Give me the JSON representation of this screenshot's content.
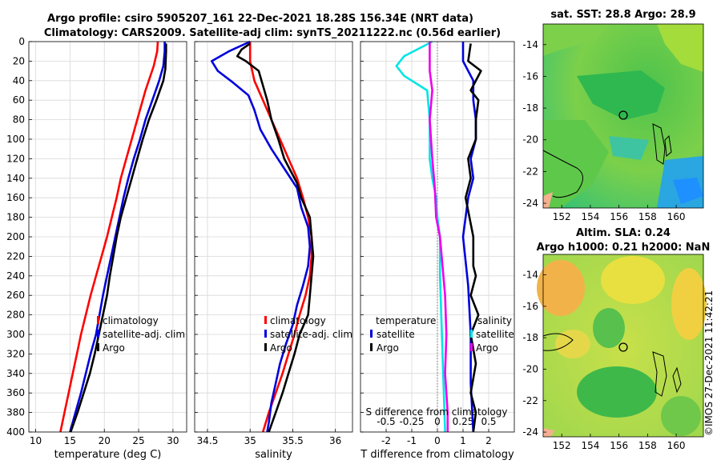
{
  "title": {
    "line1": "Argo profile: csiro 5905207_161 22-Dec-2021 18.28S 156.34E (NRT data)",
    "line2": "Climatology: CARS2009. Satellite-adj clim: synTS_20211222.nc (0.56d earlier)"
  },
  "depth_ticks": [
    "0",
    "20",
    "40",
    "60",
    "80",
    "100",
    "120",
    "140",
    "160",
    "180",
    "200",
    "220",
    "240",
    "260",
    "280",
    "300",
    "320",
    "340",
    "360",
    "380",
    "400"
  ],
  "colors": {
    "red": "#ff0000",
    "blue": "#0000dd",
    "black": "#000000",
    "cyan": "#00e5e5",
    "magenta": "#ee00ee"
  },
  "chart_data": [
    {
      "type": "line",
      "name": "temperature",
      "xlabel": "temperature (deg C)",
      "xlim": [
        9,
        32
      ],
      "ylim": [
        0,
        400
      ],
      "xticks": [
        "10",
        "15",
        "20",
        "25",
        "30"
      ],
      "legend": [
        "climatology",
        "satellite-adj. clim",
        "Argo"
      ],
      "legend_loc": "lower-right",
      "series": [
        {
          "name": "climatology",
          "color": "red",
          "points": [
            [
              27.8,
              0
            ],
            [
              27.7,
              10
            ],
            [
              27.2,
              25
            ],
            [
              26.0,
              50
            ],
            [
              24.8,
              80
            ],
            [
              24.0,
              100
            ],
            [
              23.2,
              120
            ],
            [
              22.4,
              140
            ],
            [
              21.8,
              160
            ],
            [
              21.1,
              180
            ],
            [
              20.4,
              200
            ],
            [
              19.6,
              220
            ],
            [
              18.8,
              240
            ],
            [
              18.0,
              260
            ],
            [
              17.3,
              280
            ],
            [
              16.6,
              300
            ],
            [
              16.0,
              320
            ],
            [
              15.4,
              340
            ],
            [
              14.8,
              360
            ],
            [
              14.2,
              380
            ],
            [
              13.6,
              400
            ]
          ]
        },
        {
          "name": "satellite-adj. clim",
          "color": "blue",
          "points": [
            [
              28.8,
              0
            ],
            [
              28.8,
              10
            ],
            [
              28.6,
              25
            ],
            [
              28.0,
              40
            ],
            [
              27.0,
              60
            ],
            [
              26.0,
              80
            ],
            [
              25.2,
              100
            ],
            [
              24.3,
              120
            ],
            [
              23.5,
              140
            ],
            [
              22.8,
              160
            ],
            [
              22.2,
              180
            ],
            [
              21.6,
              200
            ],
            [
              21.0,
              220
            ],
            [
              20.4,
              240
            ],
            [
              19.8,
              260
            ],
            [
              19.3,
              280
            ],
            [
              18.8,
              300
            ],
            [
              18.0,
              320
            ],
            [
              17.3,
              340
            ],
            [
              16.6,
              360
            ],
            [
              15.8,
              380
            ],
            [
              15.0,
              400
            ]
          ]
        },
        {
          "name": "Argo",
          "color": "black",
          "points": [
            [
              29.0,
              2
            ],
            [
              29.0,
              10
            ],
            [
              28.9,
              28
            ],
            [
              28.6,
              40
            ],
            [
              27.6,
              60
            ],
            [
              26.5,
              80
            ],
            [
              25.6,
              100
            ],
            [
              24.8,
              120
            ],
            [
              24.0,
              140
            ],
            [
              23.2,
              160
            ],
            [
              22.4,
              180
            ],
            [
              21.8,
              200
            ],
            [
              21.3,
              220
            ],
            [
              20.8,
              240
            ],
            [
              20.4,
              260
            ],
            [
              19.8,
              280
            ],
            [
              19.2,
              300
            ],
            [
              18.6,
              320
            ],
            [
              17.9,
              340
            ],
            [
              17.0,
              360
            ],
            [
              16.1,
              380
            ],
            [
              15.1,
              400
            ]
          ]
        }
      ]
    },
    {
      "type": "line",
      "name": "salinity",
      "xlabel": "salinity",
      "xlim": [
        34.35,
        36.2
      ],
      "ylim": [
        0,
        400
      ],
      "xticks": [
        "34.5",
        "35",
        "35.5",
        "36"
      ],
      "legend": [
        "climatology",
        "satellite-adj. clim",
        "Argo"
      ],
      "legend_loc": "lower-right",
      "series": [
        {
          "name": "climatology",
          "color": "red",
          "points": [
            [
              35.0,
              0
            ],
            [
              35.0,
              20
            ],
            [
              35.05,
              40
            ],
            [
              35.15,
              60
            ],
            [
              35.25,
              80
            ],
            [
              35.35,
              100
            ],
            [
              35.45,
              120
            ],
            [
              35.55,
              140
            ],
            [
              35.62,
              160
            ],
            [
              35.68,
              180
            ],
            [
              35.72,
              200
            ],
            [
              35.72,
              220
            ],
            [
              35.7,
              240
            ],
            [
              35.65,
              260
            ],
            [
              35.58,
              280
            ],
            [
              35.52,
              300
            ],
            [
              35.45,
              320
            ],
            [
              35.38,
              340
            ],
            [
              35.3,
              360
            ],
            [
              35.22,
              380
            ],
            [
              35.15,
              400
            ]
          ]
        },
        {
          "name": "satellite-adj. clim",
          "color": "blue",
          "points": [
            [
              35.0,
              0
            ],
            [
              34.75,
              10
            ],
            [
              34.55,
              20
            ],
            [
              34.62,
              30
            ],
            [
              34.8,
              42
            ],
            [
              34.98,
              55
            ],
            [
              35.05,
              70
            ],
            [
              35.12,
              90
            ],
            [
              35.25,
              110
            ],
            [
              35.4,
              130
            ],
            [
              35.55,
              150
            ],
            [
              35.6,
              170
            ],
            [
              35.68,
              190
            ],
            [
              35.7,
              210
            ],
            [
              35.68,
              230
            ],
            [
              35.62,
              250
            ],
            [
              35.55,
              270
            ],
            [
              35.5,
              290
            ],
            [
              35.42,
              310
            ],
            [
              35.35,
              330
            ],
            [
              35.3,
              350
            ],
            [
              35.25,
              370
            ],
            [
              35.22,
              390
            ],
            [
              35.2,
              400
            ]
          ]
        },
        {
          "name": "Argo",
          "color": "black",
          "points": [
            [
              35.0,
              2
            ],
            [
              34.9,
              8
            ],
            [
              34.85,
              15
            ],
            [
              34.95,
              20
            ],
            [
              35.1,
              30
            ],
            [
              35.15,
              45
            ],
            [
              35.2,
              60
            ],
            [
              35.25,
              80
            ],
            [
              35.33,
              100
            ],
            [
              35.4,
              120
            ],
            [
              35.55,
              145
            ],
            [
              35.6,
              160
            ],
            [
              35.7,
              180
            ],
            [
              35.72,
              200
            ],
            [
              35.74,
              220
            ],
            [
              35.72,
              240
            ],
            [
              35.7,
              260
            ],
            [
              35.68,
              280
            ],
            [
              35.58,
              300
            ],
            [
              35.52,
              320
            ],
            [
              35.45,
              340
            ],
            [
              35.38,
              360
            ],
            [
              35.3,
              380
            ],
            [
              35.22,
              400
            ]
          ]
        }
      ]
    },
    {
      "type": "line",
      "name": "differences",
      "xlabel": "T difference from climatology",
      "xlabel_top": "S difference from climatology",
      "xlim": [
        -3,
        3
      ],
      "ylim": [
        0,
        400
      ],
      "xticks": [
        "-2",
        "-1",
        "0",
        "1",
        "2"
      ],
      "xticks_top": [
        "-0.5",
        "-0.25",
        "0",
        "0.25",
        "0.5"
      ],
      "legend_headers": [
        "temperature",
        "salinity"
      ],
      "legend": [
        "satellite",
        "Argo"
      ],
      "series": [
        {
          "name": "T satellite",
          "color": "blue",
          "points": [
            [
              1.0,
              0
            ],
            [
              1.0,
              20
            ],
            [
              1.4,
              40
            ],
            [
              1.4,
              60
            ],
            [
              1.5,
              80
            ],
            [
              1.5,
              100
            ],
            [
              1.3,
              120
            ],
            [
              1.4,
              140
            ],
            [
              1.2,
              160
            ],
            [
              1.0,
              200
            ],
            [
              1.2,
              250
            ],
            [
              1.3,
              300
            ],
            [
              1.3,
              350
            ],
            [
              1.4,
              400
            ]
          ]
        },
        {
          "name": "T Argo",
          "color": "black",
          "points": [
            [
              1.3,
              2
            ],
            [
              1.2,
              20
            ],
            [
              1.7,
              30
            ],
            [
              1.3,
              50
            ],
            [
              1.6,
              60
            ],
            [
              1.5,
              80
            ],
            [
              1.5,
              100
            ],
            [
              1.2,
              120
            ],
            [
              1.3,
              140
            ],
            [
              1.1,
              160
            ],
            [
              1.4,
              200
            ],
            [
              1.4,
              230
            ],
            [
              1.5,
              240
            ],
            [
              1.3,
              260
            ],
            [
              1.6,
              280
            ],
            [
              1.3,
              300
            ],
            [
              1.5,
              330
            ],
            [
              1.3,
              360
            ],
            [
              1.5,
              380
            ],
            [
              1.4,
              400
            ]
          ]
        },
        {
          "name": "S satellite",
          "color": "cyan",
          "points": [
            [
              -0.2,
              0
            ],
            [
              -1.3,
              15
            ],
            [
              -1.6,
              25
            ],
            [
              -1.3,
              35
            ],
            [
              -0.4,
              50
            ],
            [
              -0.3,
              80
            ],
            [
              -0.3,
              120
            ],
            [
              -0.2,
              140
            ],
            [
              -0.05,
              160
            ],
            [
              0.0,
              180
            ],
            [
              0.1,
              200
            ],
            [
              0.1,
              240
            ],
            [
              0.15,
              280
            ],
            [
              0.2,
              320
            ],
            [
              0.25,
              360
            ],
            [
              0.3,
              400
            ]
          ]
        },
        {
          "name": "S Argo",
          "color": "magenta",
          "points": [
            [
              -0.3,
              0
            ],
            [
              -0.3,
              30
            ],
            [
              -0.2,
              50
            ],
            [
              -0.3,
              80
            ],
            [
              -0.2,
              120
            ],
            [
              -0.1,
              150
            ],
            [
              -0.05,
              180
            ],
            [
              0.1,
              200
            ],
            [
              0.2,
              230
            ],
            [
              0.3,
              260
            ],
            [
              0.35,
              300
            ],
            [
              0.3,
              340
            ],
            [
              0.4,
              380
            ],
            [
              0.4,
              400
            ]
          ]
        }
      ]
    }
  ],
  "sst_map": {
    "title": "sat. SST: 28.8 Argo: 28.9",
    "xticks": [
      "152",
      "154",
      "156",
      "158",
      "160"
    ],
    "yticks": [
      "-14",
      "-16",
      "-18",
      "-20",
      "-22",
      "-24"
    ]
  },
  "sla_map": {
    "title1": "Altim. SLA: 0.24",
    "title2": "Argo h1000: 0.21 h2000: NaN",
    "xticks": [
      "152",
      "154",
      "156",
      "158",
      "160"
    ],
    "yticks": [
      "-14",
      "-16",
      "-18",
      "-20",
      "-22",
      "-24"
    ]
  },
  "footer_stamp": "©IMOS 27-Dec-2021 11:42:21"
}
